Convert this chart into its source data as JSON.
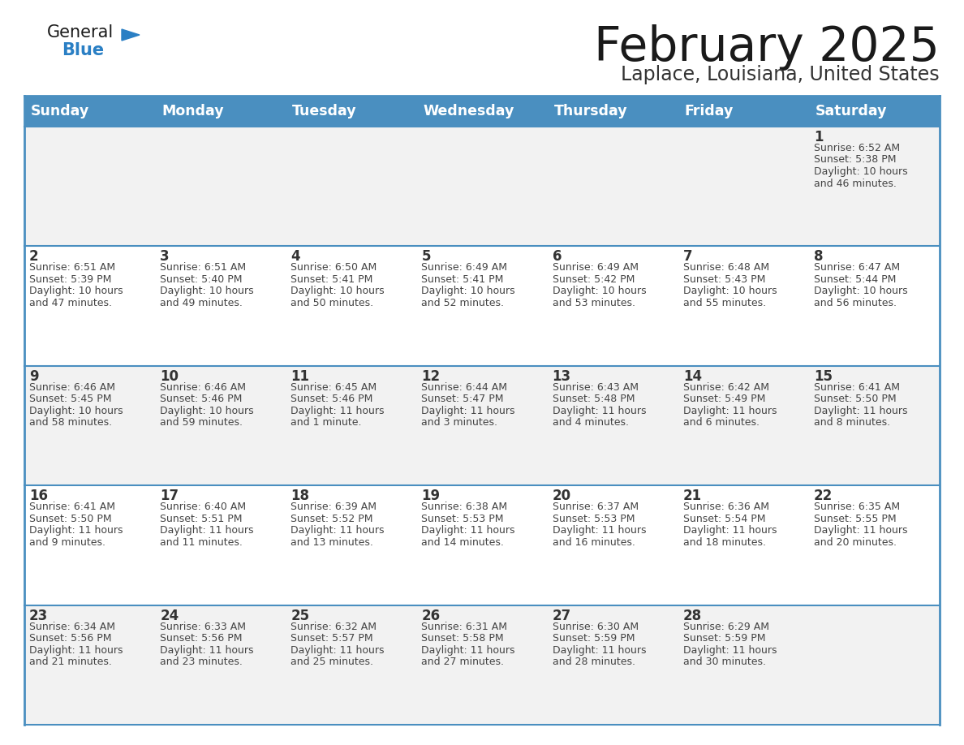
{
  "title": "February 2025",
  "subtitle": "Laplace, Louisiana, United States",
  "header_bg_color": "#4a8fc0",
  "header_text_color": "#ffffff",
  "row_bg_even": "#f2f2f2",
  "row_bg_odd": "#ffffff",
  "border_color": "#4a8fc0",
  "text_color": "#444444",
  "day_num_color": "#333333",
  "days_of_week": [
    "Sunday",
    "Monday",
    "Tuesday",
    "Wednesday",
    "Thursday",
    "Friday",
    "Saturday"
  ],
  "calendar_data": [
    [
      {
        "day": "",
        "info": ""
      },
      {
        "day": "",
        "info": ""
      },
      {
        "day": "",
        "info": ""
      },
      {
        "day": "",
        "info": ""
      },
      {
        "day": "",
        "info": ""
      },
      {
        "day": "",
        "info": ""
      },
      {
        "day": "1",
        "info": "Sunrise: 6:52 AM\nSunset: 5:38 PM\nDaylight: 10 hours\nand 46 minutes."
      }
    ],
    [
      {
        "day": "2",
        "info": "Sunrise: 6:51 AM\nSunset: 5:39 PM\nDaylight: 10 hours\nand 47 minutes."
      },
      {
        "day": "3",
        "info": "Sunrise: 6:51 AM\nSunset: 5:40 PM\nDaylight: 10 hours\nand 49 minutes."
      },
      {
        "day": "4",
        "info": "Sunrise: 6:50 AM\nSunset: 5:41 PM\nDaylight: 10 hours\nand 50 minutes."
      },
      {
        "day": "5",
        "info": "Sunrise: 6:49 AM\nSunset: 5:41 PM\nDaylight: 10 hours\nand 52 minutes."
      },
      {
        "day": "6",
        "info": "Sunrise: 6:49 AM\nSunset: 5:42 PM\nDaylight: 10 hours\nand 53 minutes."
      },
      {
        "day": "7",
        "info": "Sunrise: 6:48 AM\nSunset: 5:43 PM\nDaylight: 10 hours\nand 55 minutes."
      },
      {
        "day": "8",
        "info": "Sunrise: 6:47 AM\nSunset: 5:44 PM\nDaylight: 10 hours\nand 56 minutes."
      }
    ],
    [
      {
        "day": "9",
        "info": "Sunrise: 6:46 AM\nSunset: 5:45 PM\nDaylight: 10 hours\nand 58 minutes."
      },
      {
        "day": "10",
        "info": "Sunrise: 6:46 AM\nSunset: 5:46 PM\nDaylight: 10 hours\nand 59 minutes."
      },
      {
        "day": "11",
        "info": "Sunrise: 6:45 AM\nSunset: 5:46 PM\nDaylight: 11 hours\nand 1 minute."
      },
      {
        "day": "12",
        "info": "Sunrise: 6:44 AM\nSunset: 5:47 PM\nDaylight: 11 hours\nand 3 minutes."
      },
      {
        "day": "13",
        "info": "Sunrise: 6:43 AM\nSunset: 5:48 PM\nDaylight: 11 hours\nand 4 minutes."
      },
      {
        "day": "14",
        "info": "Sunrise: 6:42 AM\nSunset: 5:49 PM\nDaylight: 11 hours\nand 6 minutes."
      },
      {
        "day": "15",
        "info": "Sunrise: 6:41 AM\nSunset: 5:50 PM\nDaylight: 11 hours\nand 8 minutes."
      }
    ],
    [
      {
        "day": "16",
        "info": "Sunrise: 6:41 AM\nSunset: 5:50 PM\nDaylight: 11 hours\nand 9 minutes."
      },
      {
        "day": "17",
        "info": "Sunrise: 6:40 AM\nSunset: 5:51 PM\nDaylight: 11 hours\nand 11 minutes."
      },
      {
        "day": "18",
        "info": "Sunrise: 6:39 AM\nSunset: 5:52 PM\nDaylight: 11 hours\nand 13 minutes."
      },
      {
        "day": "19",
        "info": "Sunrise: 6:38 AM\nSunset: 5:53 PM\nDaylight: 11 hours\nand 14 minutes."
      },
      {
        "day": "20",
        "info": "Sunrise: 6:37 AM\nSunset: 5:53 PM\nDaylight: 11 hours\nand 16 minutes."
      },
      {
        "day": "21",
        "info": "Sunrise: 6:36 AM\nSunset: 5:54 PM\nDaylight: 11 hours\nand 18 minutes."
      },
      {
        "day": "22",
        "info": "Sunrise: 6:35 AM\nSunset: 5:55 PM\nDaylight: 11 hours\nand 20 minutes."
      }
    ],
    [
      {
        "day": "23",
        "info": "Sunrise: 6:34 AM\nSunset: 5:56 PM\nDaylight: 11 hours\nand 21 minutes."
      },
      {
        "day": "24",
        "info": "Sunrise: 6:33 AM\nSunset: 5:56 PM\nDaylight: 11 hours\nand 23 minutes."
      },
      {
        "day": "25",
        "info": "Sunrise: 6:32 AM\nSunset: 5:57 PM\nDaylight: 11 hours\nand 25 minutes."
      },
      {
        "day": "26",
        "info": "Sunrise: 6:31 AM\nSunset: 5:58 PM\nDaylight: 11 hours\nand 27 minutes."
      },
      {
        "day": "27",
        "info": "Sunrise: 6:30 AM\nSunset: 5:59 PM\nDaylight: 11 hours\nand 28 minutes."
      },
      {
        "day": "28",
        "info": "Sunrise: 6:29 AM\nSunset: 5:59 PM\nDaylight: 11 hours\nand 30 minutes."
      },
      {
        "day": "",
        "info": ""
      }
    ]
  ],
  "logo_color_general": "#1a1a1a",
  "logo_color_blue": "#2a7fc4",
  "logo_triangle_color": "#2a7fc4"
}
